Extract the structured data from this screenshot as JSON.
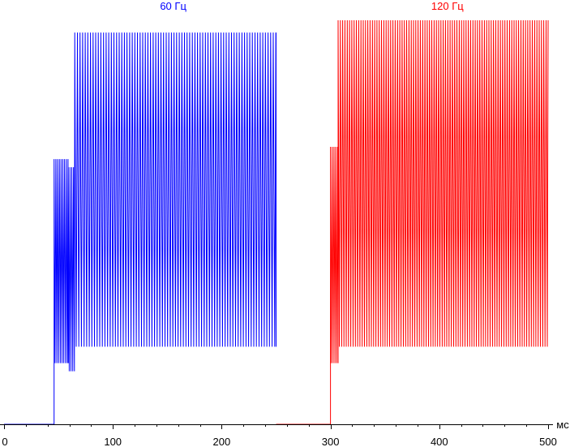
{
  "chart_data": {
    "type": "line",
    "title": "",
    "xlabel": "",
    "ylabel": "",
    "x_unit": "мс",
    "xlim": [
      0,
      500
    ],
    "xticks": [
      0,
      100,
      200,
      300,
      400,
      500
    ],
    "ylim": [
      0,
      1
    ],
    "grid": false,
    "series": [
      {
        "name": "60 Гц",
        "color": "#0000ff",
        "baseline": {
          "x": [
            0,
            46
          ],
          "y": 0.0
        },
        "rise_ms": 46,
        "flicker": [
          {
            "x_start": 46,
            "x_end": 59,
            "high": 0.65,
            "low": 0.15,
            "period_ms": 1.6
          },
          {
            "x_start": 59,
            "x_end": 65,
            "high": 0.63,
            "low": 0.13,
            "period_ms": 1.6
          },
          {
            "x_start": 65,
            "x_end": 250,
            "high": 0.96,
            "low": 0.19,
            "period_ms": 2.4
          }
        ]
      },
      {
        "name": "120 Гц",
        "color": "#ff0000",
        "baseline": {
          "x": [
            250,
            300
          ],
          "y": 0.0
        },
        "rise_ms": 300,
        "flicker": [
          {
            "x_start": 300,
            "x_end": 307,
            "high": 0.68,
            "low": 0.15,
            "period_ms": 1.6
          },
          {
            "x_start": 307,
            "x_end": 500,
            "high": 0.99,
            "low": 0.19,
            "period_ms": 2.1
          }
        ]
      }
    ]
  }
}
